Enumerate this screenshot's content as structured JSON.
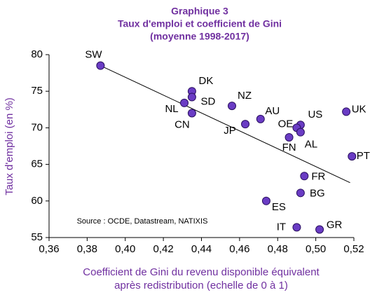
{
  "chart_data": {
    "type": "scatter",
    "title": [
      "Graphique 3",
      "Taux d'emploi et coefficient de Gini",
      "(moyenne 1998-2017)"
    ],
    "x_label": [
      "Coefficient de Gini du revenu disponible équivalent",
      "après redistribution (echelle de 0 à 1)"
    ],
    "y_label": "Taux d'emploi (en %)",
    "source": "Source : OCDE, Datastream, NATIXIS",
    "labels": [
      "SW",
      "DK",
      "SD",
      "NL",
      "CN",
      "NZ",
      "AU",
      "JP",
      "US",
      "OE",
      "AL",
      "FN",
      "UK",
      "PT",
      "FR",
      "BG",
      "ES",
      "IT",
      "GR"
    ],
    "x": [
      0.387,
      0.435,
      0.435,
      0.431,
      0.435,
      0.456,
      0.471,
      0.463,
      0.492,
      0.49,
      0.492,
      0.486,
      0.516,
      0.519,
      0.494,
      0.492,
      0.474,
      0.49,
      0.502
    ],
    "values": [
      78.5,
      75.0,
      74.2,
      73.4,
      72.0,
      73.0,
      71.2,
      70.5,
      70.4,
      70.0,
      69.4,
      68.7,
      72.2,
      66.1,
      63.4,
      61.1,
      60.0,
      56.4,
      56.1
    ],
    "color": "#6a3cc4",
    "trendline": {
      "x": [
        0.387,
        0.518
      ],
      "y": [
        78.5,
        62.5
      ]
    },
    "xlim": [
      0.36,
      0.52
    ],
    "ylim": [
      55,
      80
    ],
    "xticks": [
      {
        "value": 0.36,
        "label": "0,36"
      },
      {
        "value": 0.38,
        "label": "0,38"
      },
      {
        "value": 0.4,
        "label": "0,40"
      },
      {
        "value": 0.42,
        "label": "0,42"
      },
      {
        "value": 0.44,
        "label": "0,44"
      },
      {
        "value": 0.46,
        "label": "0,46"
      },
      {
        "value": 0.48,
        "label": "0,48"
      },
      {
        "value": 0.5,
        "label": "0,50"
      },
      {
        "value": 0.52,
        "label": "0,52"
      }
    ],
    "yticks": [
      55,
      60,
      65,
      70,
      75,
      80
    ]
  }
}
